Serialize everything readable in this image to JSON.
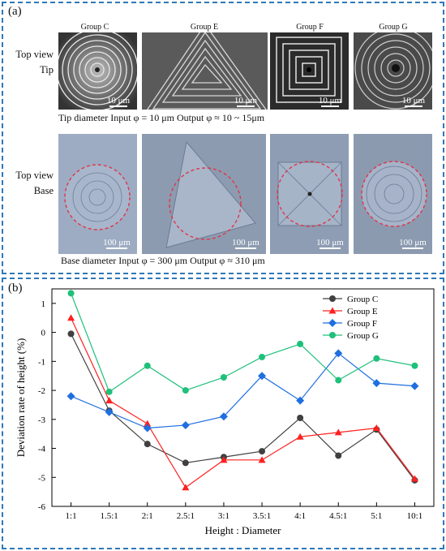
{
  "panel_a": {
    "label": "(a)",
    "groups": [
      "Group C",
      "Group E",
      "Group F",
      "Group G"
    ],
    "row_tip": {
      "line1": "Top view",
      "line2": "Tip"
    },
    "row_base": {
      "line1": "Top view",
      "line2": "Base"
    },
    "tip_scale": "10 μm",
    "base_scale": "100 μm",
    "tip_caption": "Tip diameter Input φ = 10 μm    Output φ  ≈ 10 ~ 15μm",
    "base_caption": "Base diameter Input φ = 300 μm    Output φ  ≈  310 μm"
  },
  "panel_b": {
    "label": "(b)"
  },
  "chart_data": {
    "type": "line",
    "title": "",
    "xlabel": "Height : Diameter",
    "ylabel": "Deviation rate of height (%)",
    "categories": [
      "1:1",
      "1.5:1",
      "2:1",
      "2.5:1",
      "3:1",
      "3.5:1",
      "4:1",
      "4.5:1",
      "5:1",
      "10:1"
    ],
    "ylim": [
      -6,
      1.5
    ],
    "yticks": [
      1,
      0,
      -1,
      -2,
      -3,
      -4,
      -5,
      -6
    ],
    "legend_position": "top-right",
    "grid": false,
    "series": [
      {
        "name": "Group C",
        "color": "#404040",
        "marker": "circle",
        "values": [
          -0.05,
          -2.7,
          -3.85,
          -4.5,
          -4.3,
          -4.1,
          -2.95,
          -4.25,
          -3.35,
          -5.1
        ]
      },
      {
        "name": "Group E",
        "color": "#ff2020",
        "marker": "triangle",
        "values": [
          0.5,
          -2.35,
          -3.15,
          -5.35,
          -4.4,
          -4.4,
          -3.6,
          -3.45,
          -3.3,
          -5.05
        ]
      },
      {
        "name": "Group F",
        "color": "#1f6fe0",
        "marker": "diamond",
        "values": [
          -2.2,
          -2.75,
          -3.3,
          -3.2,
          -2.9,
          -1.5,
          -2.35,
          -0.72,
          -1.75,
          -1.85
        ]
      },
      {
        "name": "Group G",
        "color": "#1fc07a",
        "marker": "circle",
        "values": [
          1.35,
          -2.05,
          -1.15,
          -2.0,
          -1.55,
          -0.85,
          -0.4,
          -1.65,
          -0.9,
          -1.15
        ]
      }
    ]
  }
}
